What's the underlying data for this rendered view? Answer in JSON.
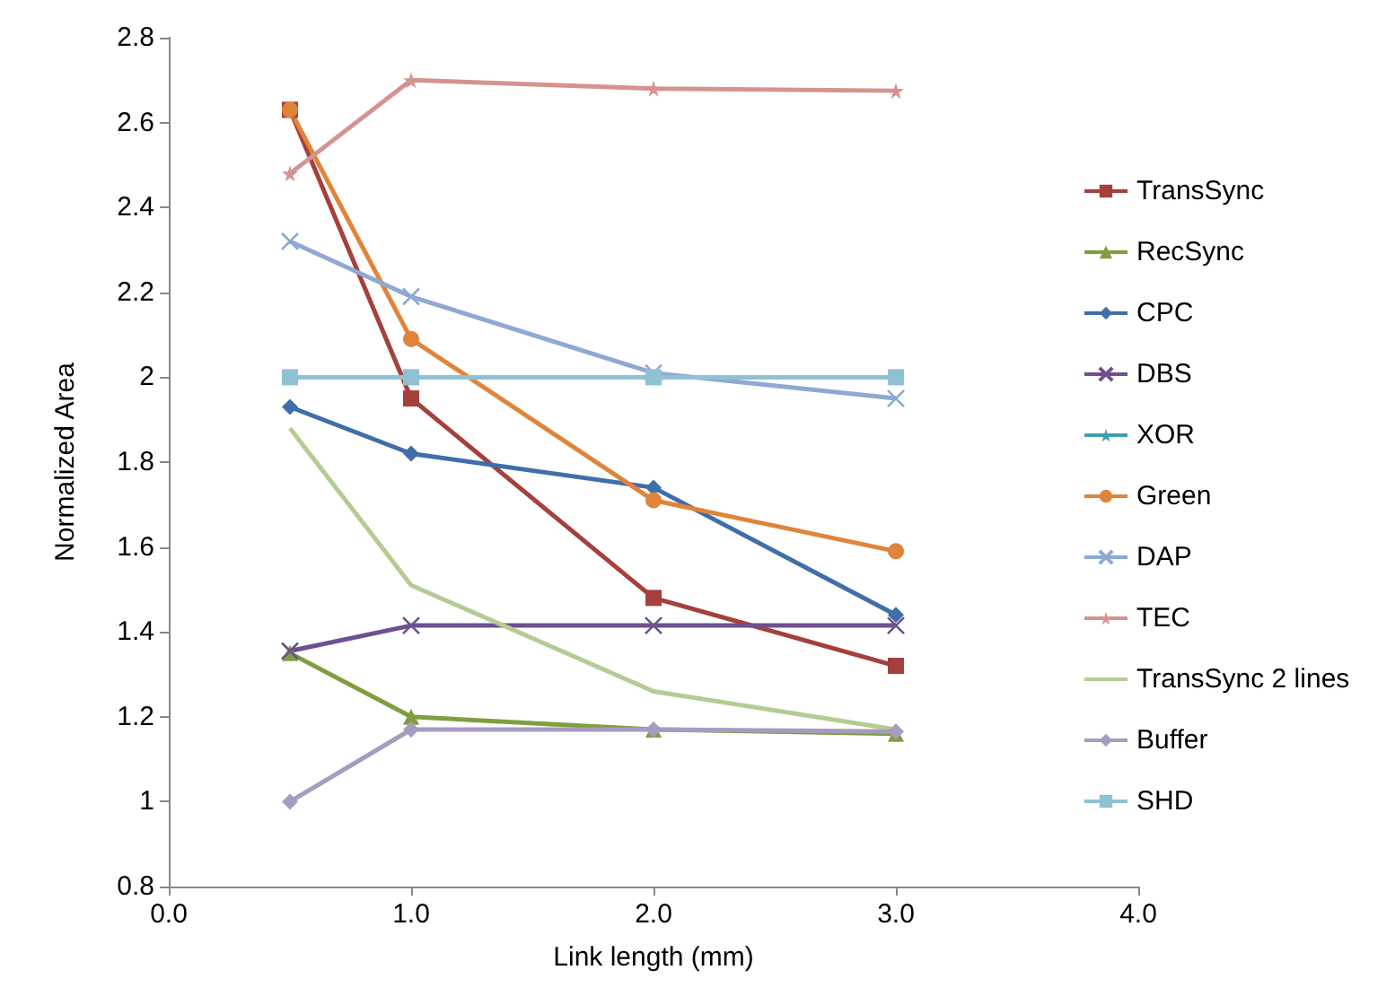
{
  "chart_data": {
    "type": "line",
    "xlabel": "Link length (mm)",
    "ylabel": "Normalized Area",
    "x": [
      0.5,
      1,
      2,
      3
    ],
    "xlim": [
      0,
      4
    ],
    "xticks": [
      {
        "value": 0,
        "label": "0.0"
      },
      {
        "value": 1,
        "label": "1.0"
      },
      {
        "value": 2,
        "label": "2.0"
      },
      {
        "value": 3,
        "label": "3.0"
      },
      {
        "value": 4,
        "label": "4.0"
      }
    ],
    "ylim": [
      0.8,
      2.8
    ],
    "yticks": [
      0.8,
      1,
      1.2,
      1.4,
      1.6,
      1.8,
      2,
      2.2,
      2.4,
      2.6,
      2.8
    ],
    "grid": false,
    "legend": "right",
    "series": [
      {
        "name": "TransSync",
        "color": "#a5403c",
        "marker": "square",
        "values": [
          2.63,
          1.95,
          1.48,
          1.32
        ]
      },
      {
        "name": "RecSync",
        "color": "#7f9f3f",
        "marker": "triangle",
        "values": [
          1.35,
          1.2,
          1.17,
          1.16
        ]
      },
      {
        "name": "CPC",
        "color": "#3f6ea8",
        "marker": "diamond",
        "values": [
          1.93,
          1.82,
          1.74,
          1.44
        ]
      },
      {
        "name": "DBS",
        "color": "#6e5091",
        "marker": "cross",
        "values": [
          1.355,
          1.415,
          1.415,
          1.415
        ]
      },
      {
        "name": "XOR",
        "color": "#3f9fb5",
        "marker": "star",
        "values": [
          null,
          null,
          null,
          null
        ]
      },
      {
        "name": "Green",
        "color": "#e0843a",
        "marker": "circle",
        "values": [
          2.63,
          2.09,
          1.71,
          1.59
        ]
      },
      {
        "name": "DAP",
        "color": "#8fa8d4",
        "marker": "cross",
        "values": [
          2.32,
          2.19,
          2.01,
          1.95
        ]
      },
      {
        "name": "TEC",
        "color": "#d49391",
        "marker": "star",
        "values": [
          2.48,
          2.7,
          2.68,
          2.675
        ]
      },
      {
        "name": "TransSync 2 lines",
        "color": "#b4cc94",
        "marker": "none",
        "values": [
          1.88,
          1.51,
          1.26,
          1.17
        ]
      },
      {
        "name": "Buffer",
        "color": "#a79bc0",
        "marker": "diamond",
        "values": [
          1,
          1.17,
          1.17,
          1.165
        ]
      },
      {
        "name": "SHD",
        "color": "#8fc1d4",
        "marker": "square",
        "values": [
          2,
          2,
          2,
          2
        ]
      }
    ]
  }
}
